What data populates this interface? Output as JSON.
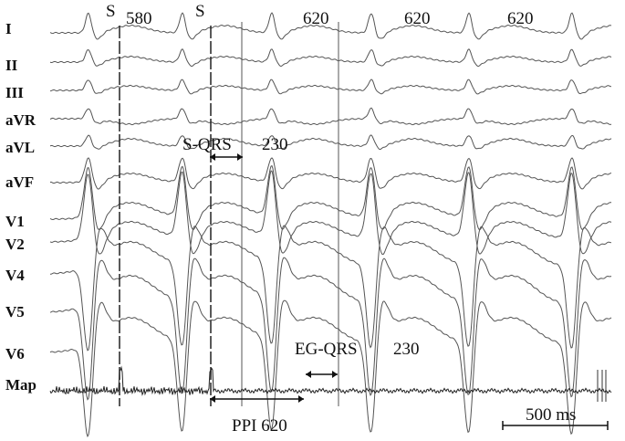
{
  "leads": [
    "I",
    "II",
    "III",
    "aVR",
    "aVL",
    "aVF",
    "V1",
    "V2",
    "V4",
    "V5",
    "V6",
    "Map"
  ],
  "stimulus": {
    "marker": "S"
  },
  "cycle_lengths": [
    "580",
    "620",
    "620",
    "620"
  ],
  "s_qrs": {
    "label": "S-QRS",
    "value": "230"
  },
  "eg_qrs": {
    "label": "EG-QRS",
    "value": "230"
  },
  "ppi": {
    "label": "PPI 620"
  },
  "scale_bar": {
    "label": "500 ms"
  }
}
